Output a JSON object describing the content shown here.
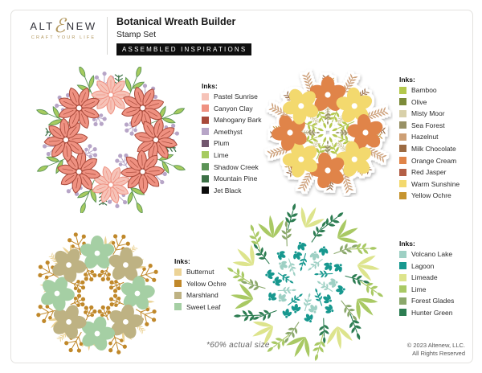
{
  "header": {
    "brand": {
      "word_start": "ALT",
      "glyph": "ℰ",
      "word_end": "NEW",
      "tagline": "CRAFT YOUR LIFE",
      "gold": "#b3985f"
    },
    "title": "Botanical Wreath Builder",
    "subtitle": "Stamp Set",
    "badge": "ASSEMBLED INSPIRATIONS"
  },
  "ink_lists": [
    {
      "label": "Inks:",
      "inks": [
        {
          "name": "Pastel Sunrise",
          "color": "#f6c3b8"
        },
        {
          "name": "Canyon Clay",
          "color": "#ef9181"
        },
        {
          "name": "Mahogany Bark",
          "color": "#a8493a"
        },
        {
          "name": "Amethyst",
          "color": "#b7a5c7"
        },
        {
          "name": "Plum",
          "color": "#71566e"
        },
        {
          "name": "Lime",
          "color": "#a6cb5f"
        },
        {
          "name": "Shadow Creek",
          "color": "#5b9356"
        },
        {
          "name": "Mountain Pine",
          "color": "#3c7046"
        },
        {
          "name": "Jet Black",
          "color": "#0c0c0c"
        }
      ]
    },
    {
      "label": "Inks:",
      "inks": [
        {
          "name": "Bamboo",
          "color": "#b4c84c"
        },
        {
          "name": "Olive",
          "color": "#7c8b39"
        },
        {
          "name": "Misty Moor",
          "color": "#d8d0a9"
        },
        {
          "name": "Sea Forest",
          "color": "#989165"
        },
        {
          "name": "Hazelnut",
          "color": "#cd9f75"
        },
        {
          "name": "Milk Chocolate",
          "color": "#9b6a41"
        },
        {
          "name": "Orange Cream",
          "color": "#e08448"
        },
        {
          "name": "Red Jasper",
          "color": "#b35f47"
        },
        {
          "name": "Warm Sunshine",
          "color": "#f3d96e"
        },
        {
          "name": "Yellow Ochre",
          "color": "#c6942f"
        }
      ]
    },
    {
      "label": "Inks:",
      "inks": [
        {
          "name": "Butternut",
          "color": "#ecd396"
        },
        {
          "name": "Yellow Ochre",
          "color": "#c0882a"
        },
        {
          "name": "Marshland",
          "color": "#beb283"
        },
        {
          "name": "Sweet Leaf",
          "color": "#a5cfa4"
        }
      ]
    },
    {
      "label": "Inks:",
      "inks": [
        {
          "name": "Volcano Lake",
          "color": "#9ed0c4"
        },
        {
          "name": "Lagoon",
          "color": "#17988f"
        },
        {
          "name": "Limeade",
          "color": "#dde48c"
        },
        {
          "name": "Lime",
          "color": "#a9c964"
        },
        {
          "name": "Forest Glades",
          "color": "#8ba86b"
        },
        {
          "name": "Hunter Green",
          "color": "#2d7d52"
        }
      ]
    }
  ],
  "footer": {
    "scale_note": "*60% actual size",
    "copyright_line1": "© 2023 Altenew, LLC.",
    "copyright_line2": "All Rights Reserved"
  }
}
